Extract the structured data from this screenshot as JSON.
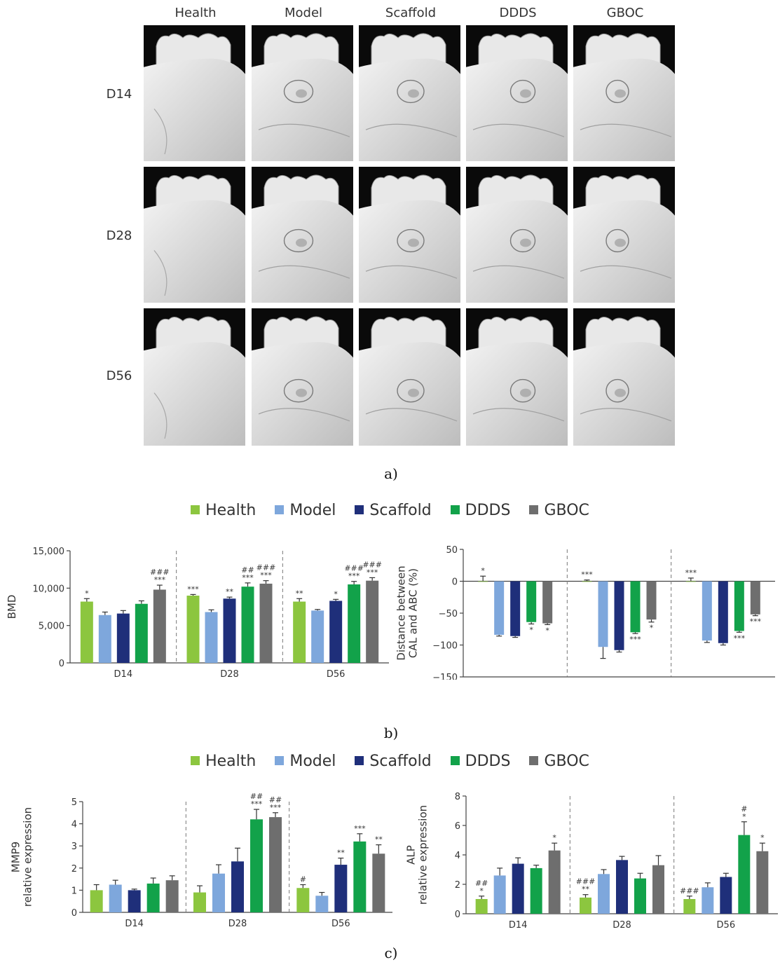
{
  "panel_a": {
    "columns": [
      "Health",
      "Model",
      "Scaffold",
      "DDDS",
      "GBOC"
    ],
    "rows": [
      "D14",
      "D28",
      "D56"
    ],
    "label": "a)"
  },
  "panel_b": {
    "label": "b)"
  },
  "panel_c": {
    "label": "c)"
  },
  "legend": {
    "items": [
      {
        "name": "Health",
        "color": "#8cc63f"
      },
      {
        "name": "Model",
        "color": "#7ea7dc"
      },
      {
        "name": "Scaffold",
        "color": "#1f2f7a"
      },
      {
        "name": "DDDS",
        "color": "#12a24a"
      },
      {
        "name": "GBOC",
        "color": "#6e6e6e"
      }
    ]
  },
  "chart_data": [
    {
      "id": "bmd",
      "type": "bar",
      "ylabel": "BMD",
      "ylim": [
        0,
        15000
      ],
      "yticks": [
        0,
        5000,
        10000,
        15000
      ],
      "ytick_labels": [
        "0",
        "5,000",
        "10,000",
        "15,000"
      ],
      "categories": [
        "D14",
        "D28",
        "D56"
      ],
      "series": [
        {
          "name": "Health",
          "values": [
            8200,
            9000,
            8200
          ],
          "errors": [
            400,
            150,
            400
          ],
          "annotations": [
            "*",
            "***",
            "**"
          ]
        },
        {
          "name": "Model",
          "values": [
            6400,
            6800,
            7000
          ],
          "errors": [
            400,
            300,
            150
          ],
          "annotations": [
            "",
            "",
            ""
          ]
        },
        {
          "name": "Scaffold",
          "values": [
            6600,
            8600,
            8300
          ],
          "errors": [
            400,
            200,
            200
          ],
          "annotations": [
            "",
            "**",
            "*"
          ]
        },
        {
          "name": "DDDS",
          "values": [
            7900,
            10200,
            10500
          ],
          "errors": [
            400,
            500,
            400
          ],
          "annotations": [
            "",
            "##|***",
            "###|***"
          ]
        },
        {
          "name": "GBOC",
          "values": [
            9800,
            10600,
            11000
          ],
          "errors": [
            600,
            400,
            400
          ],
          "annotations": [
            "###|***",
            "###|***",
            "###|***"
          ]
        }
      ]
    },
    {
      "id": "cal_abc",
      "type": "bar",
      "ylabel_lines": [
        "Distance between",
        "CAL and ABC (%)"
      ],
      "ylim": [
        -150,
        50
      ],
      "yticks": [
        -150,
        -100,
        -50,
        0,
        50
      ],
      "ytick_labels": [
        "−150",
        "−100",
        "−50",
        "0",
        "50"
      ],
      "categories": [
        "D14",
        "D28",
        "D56"
      ],
      "series": [
        {
          "name": "Health",
          "values": [
            0,
            0,
            0
          ],
          "errors": [
            8,
            2,
            5
          ],
          "annotations": [
            "*",
            "***",
            "***"
          ]
        },
        {
          "name": "Model",
          "values": [
            -84,
            -103,
            -93
          ],
          "errors": [
            2,
            18,
            3
          ],
          "annotations": [
            "",
            "",
            ""
          ]
        },
        {
          "name": "Scaffold",
          "values": [
            -86,
            -108,
            -97
          ],
          "errors": [
            2,
            3,
            3
          ],
          "annotations": [
            "",
            "",
            ""
          ]
        },
        {
          "name": "DDDS",
          "values": [
            -64,
            -80,
            -78
          ],
          "errors": [
            3,
            2,
            2
          ],
          "annotations": [
            "*",
            "***",
            "***"
          ]
        },
        {
          "name": "GBOC",
          "values": [
            -66,
            -60,
            -52
          ],
          "errors": [
            2,
            4,
            2
          ],
          "annotations": [
            "*",
            "*",
            "***"
          ]
        }
      ]
    },
    {
      "id": "mmp9",
      "type": "bar",
      "ylabel_lines": [
        "MMP9",
        "relative expression"
      ],
      "ylim": [
        0,
        5
      ],
      "yticks": [
        0,
        1,
        2,
        3,
        4,
        5
      ],
      "ytick_labels": [
        "0",
        "1",
        "2",
        "3",
        "4",
        "5"
      ],
      "categories": [
        "D14",
        "D28",
        "D56"
      ],
      "series": [
        {
          "name": "Health",
          "values": [
            1.0,
            0.9,
            1.1
          ],
          "errors": [
            0.25,
            0.3,
            0.15
          ],
          "annotations": [
            "",
            "",
            "#"
          ]
        },
        {
          "name": "Model",
          "values": [
            1.25,
            1.75,
            0.75
          ],
          "errors": [
            0.2,
            0.4,
            0.15
          ],
          "annotations": [
            "",
            "",
            ""
          ]
        },
        {
          "name": "Scaffold",
          "values": [
            1.0,
            2.3,
            2.15
          ],
          "errors": [
            0.05,
            0.6,
            0.3
          ],
          "annotations": [
            "",
            "",
            "**"
          ]
        },
        {
          "name": "DDDS",
          "values": [
            1.3,
            4.2,
            3.2
          ],
          "errors": [
            0.25,
            0.45,
            0.35
          ],
          "annotations": [
            "",
            "##|***",
            "***"
          ]
        },
        {
          "name": "GBOC",
          "values": [
            1.45,
            4.3,
            2.65
          ],
          "errors": [
            0.2,
            0.2,
            0.4
          ],
          "annotations": [
            "",
            "##|***",
            "**"
          ]
        }
      ]
    },
    {
      "id": "alp",
      "type": "bar",
      "ylabel_lines": [
        "ALP",
        "relative expression"
      ],
      "ylim": [
        0,
        8
      ],
      "yticks": [
        0,
        2,
        4,
        6,
        8
      ],
      "ytick_labels": [
        "0",
        "2",
        "4",
        "6",
        "8"
      ],
      "categories": [
        "D14",
        "D28",
        "D56"
      ],
      "series": [
        {
          "name": "Health",
          "values": [
            1.0,
            1.1,
            1.0
          ],
          "errors": [
            0.2,
            0.2,
            0.2
          ],
          "annotations": [
            "##|*",
            "###|**",
            "###"
          ]
        },
        {
          "name": "Model",
          "values": [
            2.6,
            2.7,
            1.8
          ],
          "errors": [
            0.5,
            0.3,
            0.3
          ],
          "annotations": [
            "",
            "",
            ""
          ]
        },
        {
          "name": "Scaffold",
          "values": [
            3.4,
            3.65,
            2.5
          ],
          "errors": [
            0.4,
            0.25,
            0.25
          ],
          "annotations": [
            "",
            "",
            ""
          ]
        },
        {
          "name": "DDDS",
          "values": [
            3.1,
            2.4,
            5.35
          ],
          "errors": [
            0.2,
            0.35,
            0.9
          ],
          "annotations": [
            "",
            "",
            "#|*"
          ]
        },
        {
          "name": "GBOC",
          "values": [
            4.3,
            3.3,
            4.25
          ],
          "errors": [
            0.5,
            0.65,
            0.55
          ],
          "annotations": [
            "*",
            "",
            "*"
          ]
        }
      ]
    }
  ]
}
